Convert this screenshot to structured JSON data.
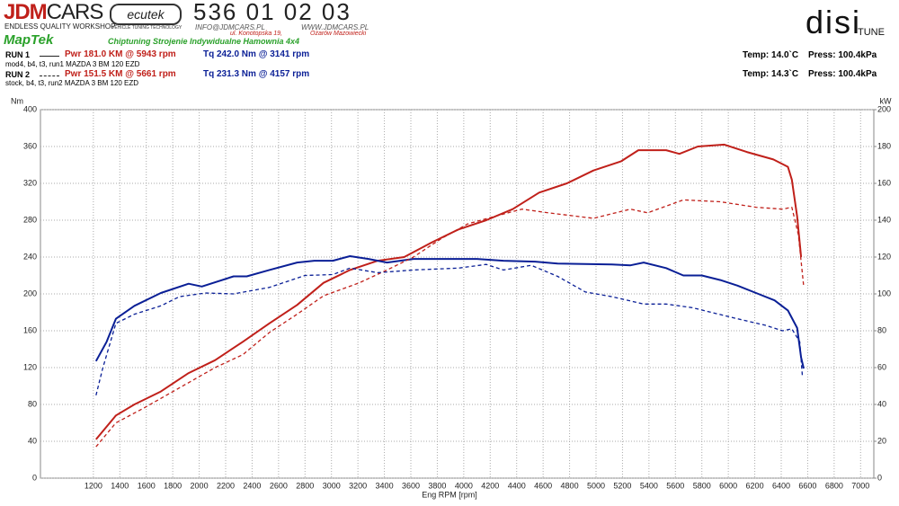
{
  "header": {
    "logo_a": "JDM",
    "logo_b": "CARS",
    "logo_tagline": "ENDLESS QUALITY WORKSHOP",
    "ecutek": "ecutek",
    "ecutek_tagline": "VEHICLE TUNING TECHNOLOGY",
    "phone": "536 01 02 03",
    "email": "INFO@JDMCARS.PL",
    "web": "WWW.JDMCARS.PL",
    "street": "ul. Konotopska 19,",
    "city": "Ożarów Mazowiecki",
    "maptek": "MapTek",
    "slogan": "Chiptuning Strojenie Indywidualne Hamownia 4x4",
    "disi": "disi",
    "tune": "TUNE"
  },
  "runs": [
    {
      "label": "RUN 1",
      "desc": "mod4, b4, t3, run1 MAZDA 3 BM 120 EZD",
      "temp": "Temp: 14.0`C",
      "press": "Press: 100.4kPa"
    },
    {
      "label": "RUN 2",
      "desc": "stock, b4, t3, run2 MAZDA 3 BM 120 EZD",
      "temp": "Temp: 14.3`C",
      "press": "Press: 100.4kPa"
    }
  ],
  "chart_data": {
    "type": "line",
    "xlabel": "Eng RPM [rpm]",
    "ylabel": "Nm",
    "y2label": "kW",
    "xlim": [
      800,
      7100
    ],
    "xticks": [
      1200,
      1400,
      1600,
      1800,
      2000,
      2200,
      2400,
      2600,
      2800,
      3000,
      3200,
      3400,
      3600,
      3800,
      4000,
      4200,
      4400,
      4600,
      4800,
      5000,
      5200,
      5400,
      5600,
      5800,
      6000,
      6200,
      6400,
      6600,
      6800,
      7000
    ],
    "ylim": [
      0,
      400
    ],
    "yticks": [
      0,
      40,
      80,
      120,
      160,
      200,
      240,
      280,
      320,
      360,
      400
    ],
    "y2lim": [
      0,
      200
    ],
    "y2ticks": [
      0,
      20,
      40,
      60,
      80,
      100,
      120,
      140,
      160,
      180,
      200
    ],
    "grid": true,
    "series": [
      {
        "name": "Pwr 181.0 KM @ 5943 rpm",
        "color": "#c0201a",
        "dash": false,
        "axis": "y2",
        "x": [
          1220,
          1370,
          1510,
          1710,
          1920,
          2120,
          2330,
          2530,
          2740,
          2940,
          3140,
          3350,
          3550,
          3760,
          3960,
          4170,
          4370,
          4570,
          4780,
          4980,
          5190,
          5320,
          5530,
          5630,
          5770,
          5970,
          6140,
          6340,
          6450,
          6480,
          6520,
          6550
        ],
        "values": [
          21,
          34,
          40,
          47,
          57,
          64,
          74,
          84,
          94,
          106,
          113,
          118,
          120,
          128,
          135,
          140,
          146,
          155,
          160,
          167,
          172,
          178,
          178,
          176,
          180,
          181,
          177,
          173,
          169,
          162,
          142,
          120
        ]
      },
      {
        "name": "Tq 242.0 Nm @ 3141 rpm",
        "color": "#0a1f96",
        "dash": false,
        "x": [
          1220,
          1300,
          1370,
          1510,
          1710,
          1920,
          2020,
          2260,
          2360,
          2530,
          2740,
          2870,
          3010,
          3140,
          3280,
          3420,
          3620,
          3890,
          4100,
          4300,
          4540,
          4710,
          5120,
          5260,
          5360,
          5530,
          5660,
          5800,
          5940,
          6070,
          6210,
          6350,
          6450,
          6520,
          6550,
          6570
        ],
        "values": [
          127,
          148,
          173,
          187,
          201,
          211,
          208,
          219,
          219,
          226,
          234,
          236,
          236,
          241,
          238,
          234,
          238,
          238,
          238,
          236,
          235,
          233,
          232,
          231,
          234,
          228,
          220,
          220,
          215,
          209,
          201,
          193,
          182,
          163,
          131,
          119
        ]
      },
      {
        "name": "Pwr 151.5 KM @ 5661 rpm",
        "color": "#c0201a",
        "dash": true,
        "axis": "y2",
        "x": [
          1220,
          1370,
          1580,
          1850,
          2120,
          2330,
          2530,
          2740,
          2940,
          3210,
          3420,
          3620,
          3830,
          4030,
          4230,
          4440,
          4640,
          4980,
          5260,
          5390,
          5660,
          5940,
          6210,
          6410,
          6480,
          6530,
          6570
        ],
        "values": [
          17,
          30,
          38,
          49,
          60,
          67,
          79,
          89,
          99,
          106,
          113,
          120,
          130,
          138,
          142,
          146,
          144,
          141,
          146,
          144,
          151,
          150,
          147,
          146,
          147,
          132,
          104
        ]
      },
      {
        "name": "Tq 231.3 Nm @ 4157 rpm",
        "color": "#0a1f96",
        "dash": true,
        "x": [
          1220,
          1270,
          1370,
          1510,
          1710,
          1850,
          2050,
          2260,
          2530,
          2800,
          3010,
          3140,
          3350,
          3620,
          3960,
          4170,
          4300,
          4510,
          4710,
          4920,
          5120,
          5360,
          5530,
          5730,
          5870,
          6070,
          6280,
          6410,
          6480,
          6540,
          6560
        ],
        "values": [
          90,
          119,
          168,
          178,
          187,
          197,
          201,
          200,
          207,
          220,
          221,
          228,
          223,
          226,
          228,
          232,
          226,
          231,
          219,
          202,
          197,
          189,
          189,
          185,
          180,
          173,
          166,
          160,
          162,
          148,
          111
        ]
      }
    ]
  }
}
